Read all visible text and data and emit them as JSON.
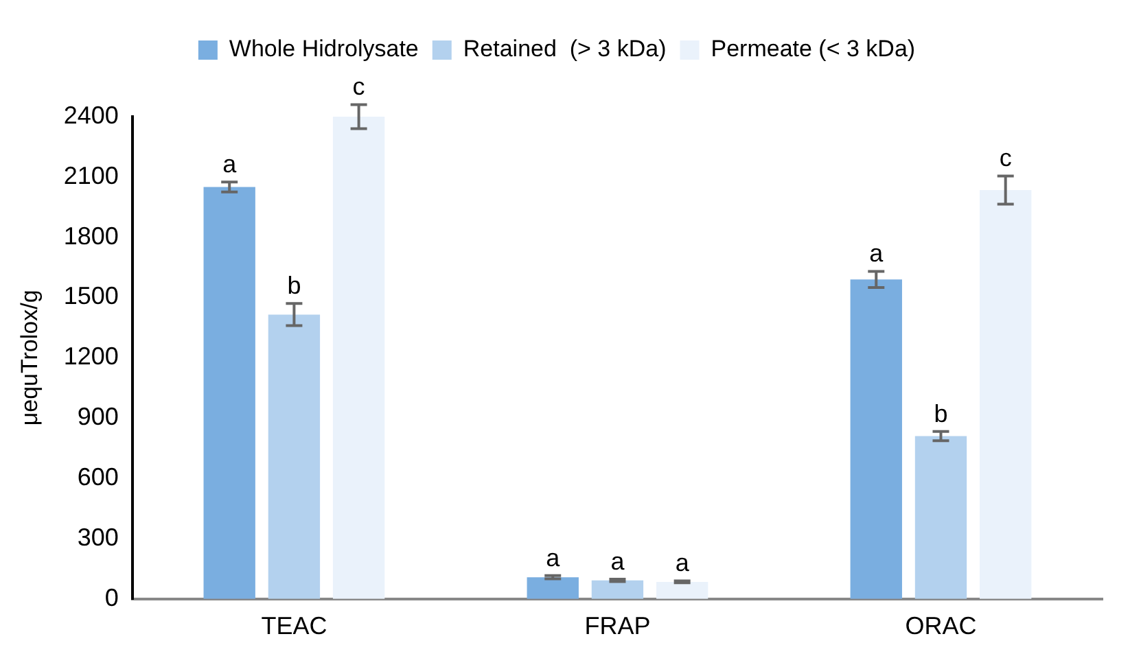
{
  "chart_data": {
    "type": "bar",
    "ylabel": "μequTrolox/g",
    "categories": [
      "TEAC",
      "FRAP",
      "ORAC"
    ],
    "series": [
      {
        "name": "Whole Hidrolysate",
        "color": "#7aaee0",
        "values": [
          2050,
          108,
          1590
        ],
        "errors": [
          25,
          8,
          40
        ]
      },
      {
        "name": "Retained  (> 3 kDa)",
        "color": "#b3d1ee",
        "values": [
          1415,
          92,
          810
        ],
        "errors": [
          55,
          6,
          23
        ]
      },
      {
        "name": "Permeate (< 3 kDa)",
        "color": "#eaf2fb",
        "values": [
          2400,
          85,
          2035
        ],
        "errors": [
          60,
          5,
          70
        ]
      }
    ],
    "ylim": [
      0,
      2400
    ],
    "yticks": [
      0,
      300,
      600,
      900,
      1200,
      1500,
      1800,
      2100,
      2400
    ],
    "grid": false,
    "legend": "top",
    "annotations": [
      "a",
      "b",
      "c",
      "a",
      "a",
      "a",
      "a",
      "b",
      "c"
    ]
  }
}
